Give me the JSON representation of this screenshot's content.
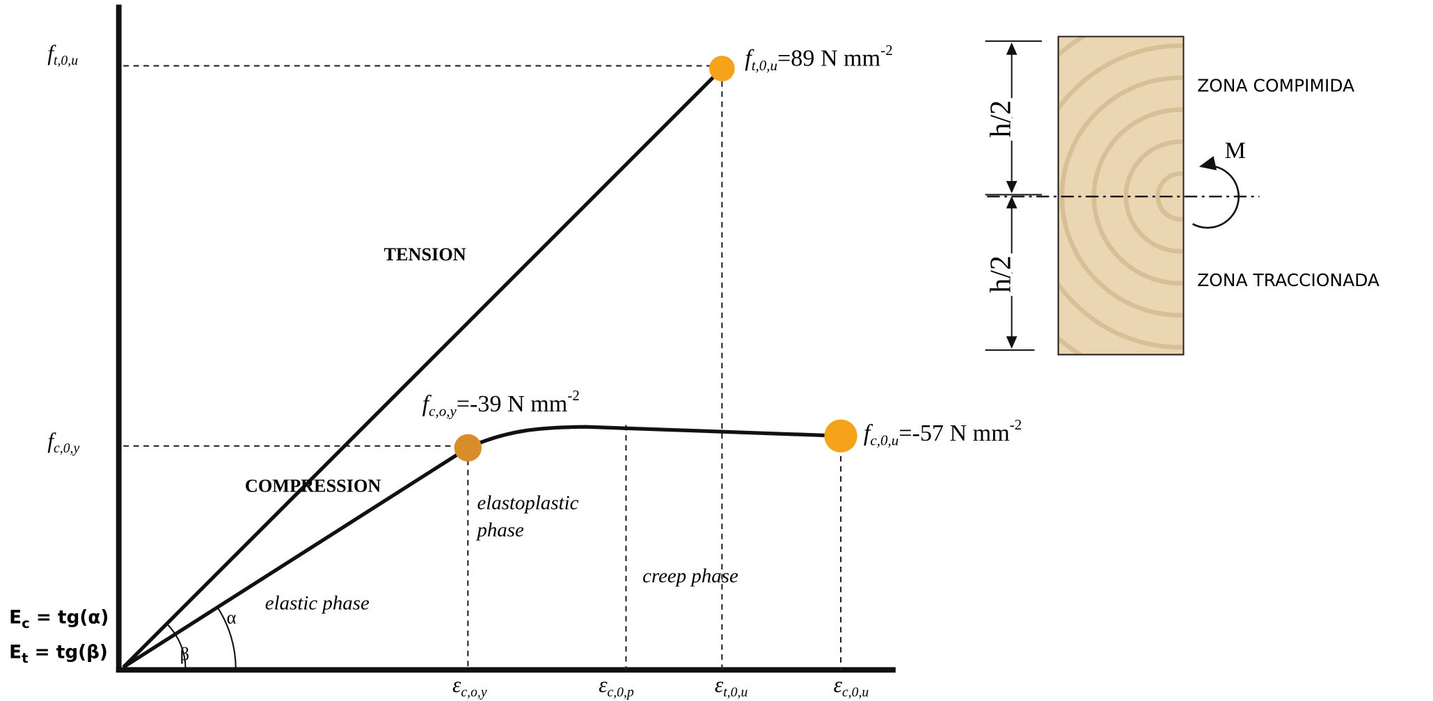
{
  "left_diagram": {
    "y_axis_labels": [
      {
        "main": "f",
        "sub": "t,0,u"
      },
      {
        "main": "f",
        "sub": "c,0,y"
      }
    ],
    "x_axis_labels": [
      {
        "main": "ε",
        "sub": "c,o,y"
      },
      {
        "main": "ε",
        "sub": "c,0,p"
      },
      {
        "main": "ε",
        "sub": "t,0,u"
      },
      {
        "main": "ε",
        "sub": "c,0,u"
      }
    ],
    "points": [
      {
        "main": "f",
        "sub": "t,0,u",
        "text": "=89 N mm",
        "sup": "-2"
      },
      {
        "main": "f",
        "sub": "c,o,y",
        "text": "=-39 N mm",
        "sup": "-2"
      },
      {
        "main": "f",
        "sub": "c,0,u",
        "text": "=-57 N mm",
        "sup": "-2"
      }
    ],
    "regions": [
      "TENSION",
      "COMPRESSION",
      "elastic phase",
      "elastoplastic",
      "phase",
      "creep phase"
    ],
    "angles": [
      "α",
      "β"
    ],
    "moduli": [
      {
        "main": "E",
        "sub": "c",
        "text": " = tg(α)"
      },
      {
        "main": "E",
        "sub": "t",
        "text": " = tg(β)"
      }
    ]
  },
  "right_diagram": {
    "heights": [
      "h/2",
      "h/2"
    ],
    "moment": "M",
    "zones": [
      "ZONA COMPIMIDA",
      "ZONA TRACCIONADA"
    ]
  }
}
